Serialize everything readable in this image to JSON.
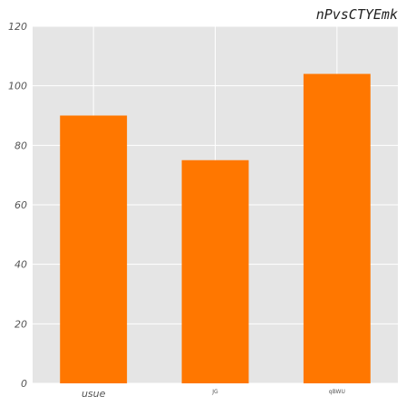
{
  "chart_data": {
    "type": "bar",
    "title": "nPvsCTYEmk",
    "xlabel": "",
    "ylabel": "",
    "categories": [
      "usue",
      "JG",
      "qBWU"
    ],
    "values": [
      90,
      75,
      104
    ],
    "ylim": [
      0,
      120
    ],
    "yticks": [
      0,
      20,
      40,
      60,
      80,
      100,
      120
    ],
    "grid": true,
    "legend": "none",
    "colors": {
      "bar": "#ff7700",
      "plot_background": "#e5e5e5",
      "grid": "#ffffff",
      "page_background": "#ffffff"
    }
  }
}
